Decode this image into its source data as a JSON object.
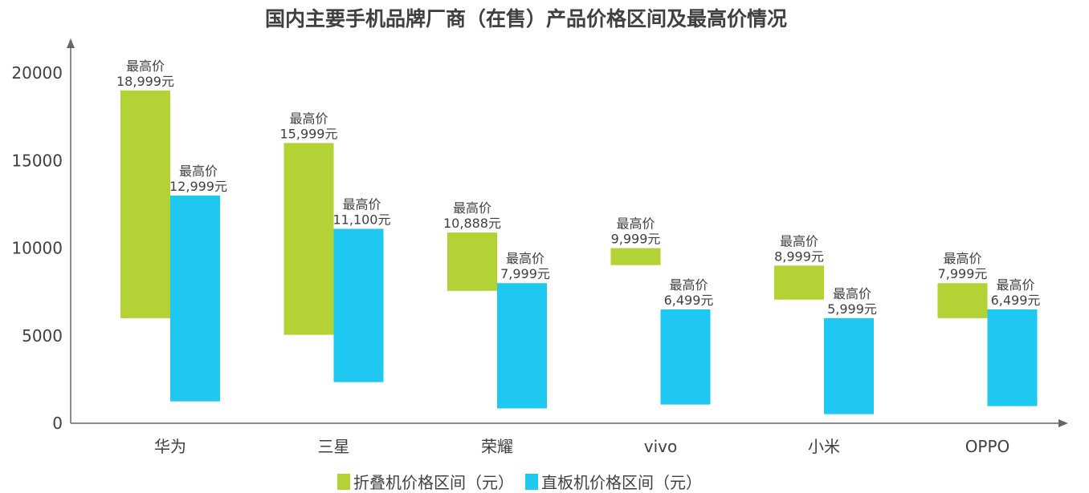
{
  "chart_data": {
    "type": "bar",
    "title": "国内主要手机品牌厂商（在售）产品价格区间及最高价情况",
    "categories": [
      "华为",
      "三星",
      "荣耀",
      "vivo",
      "小米",
      "OPPO"
    ],
    "ylim": [
      0,
      20000
    ],
    "yticks": [
      0,
      5000,
      10000,
      15000,
      20000
    ],
    "grid": false,
    "legend_position": "bottom",
    "series": [
      {
        "name": "折叠机价格区间（元）",
        "color": "#b2d235",
        "low": [
          6000,
          5050,
          7560,
          9030,
          7060,
          6000
        ],
        "high": [
          18999,
          15999,
          10888,
          9999,
          8999,
          7999
        ],
        "label_title": "最高价",
        "labels": [
          "18,999元",
          "15,999元",
          "10,888元",
          "9,999元",
          "8,999元",
          "7,999元"
        ]
      },
      {
        "name": "直板机价格区间（元）",
        "color": "#1ec8f0",
        "low": [
          1250,
          2350,
          850,
          1070,
          520,
          980
        ],
        "high": [
          12999,
          11100,
          7999,
          6499,
          5999,
          6499
        ],
        "label_title": "最高价",
        "labels": [
          "12,999元",
          "11,100元",
          "7,999元",
          "6,499元",
          "5,999元",
          "6,499元"
        ]
      }
    ]
  }
}
